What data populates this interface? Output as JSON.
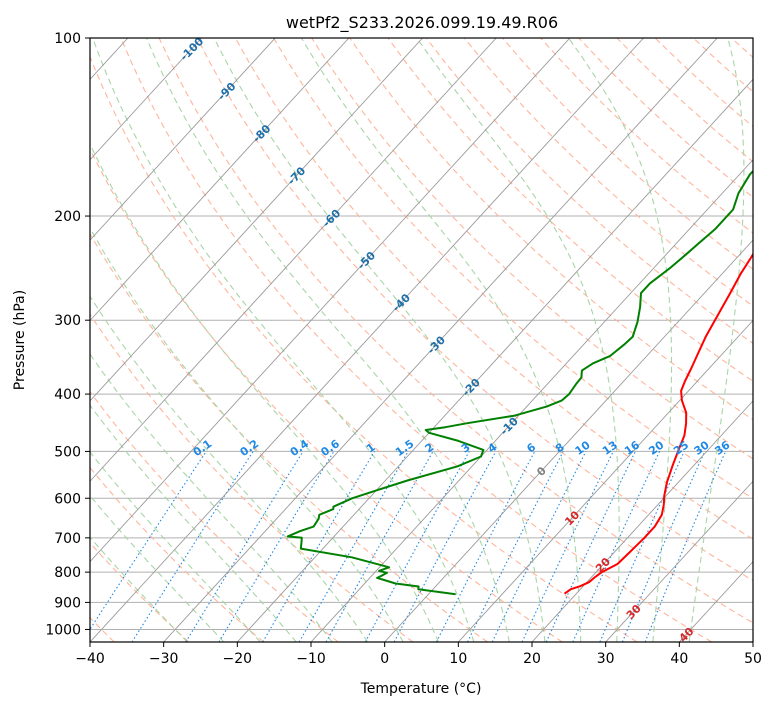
{
  "chart_data": {
    "type": "line",
    "title": "wetPf2_S233.2026.099.19.49.R06",
    "xlabel": "Temperature (°C)",
    "ylabel": "Pressure (hPa)",
    "xlim": [
      -40,
      50
    ],
    "ylim": [
      1050,
      100
    ],
    "x_ticks": [
      "−40",
      "−30",
      "−20",
      "−10",
      "0",
      "10",
      "20",
      "30",
      "40",
      "50"
    ],
    "x_tick_values": [
      -40,
      -30,
      -20,
      -10,
      0,
      10,
      20,
      30,
      40,
      50
    ],
    "y_ticks": [
      "100",
      "200",
      "300",
      "400",
      "500",
      "600",
      "700",
      "800",
      "900",
      "1000"
    ],
    "y_tick_values": [
      100,
      200,
      300,
      400,
      500,
      600,
      700,
      800,
      900,
      1000
    ],
    "colors": {
      "temperature": "#ff0000",
      "dewpoint": "#008000",
      "grid": "#b0b0b0",
      "isotherm": "#9a9a9a",
      "dry_adiabat": "#ffb59c",
      "moist_adiabat": "#a8d5a8",
      "mixing_ratio": "#1e88e5",
      "isotherm_label": "#1f6fa8",
      "dry_label": "#d62728",
      "zero_label": "#808080"
    },
    "series": [
      {
        "name": "Temperature",
        "points": [
          [
            18.4,
            870
          ],
          [
            18.7,
            855
          ],
          [
            19.6,
            845
          ],
          [
            20.3,
            832
          ],
          [
            20.5,
            815
          ],
          [
            20.8,
            800
          ],
          [
            21.9,
            775
          ],
          [
            22.1,
            740
          ],
          [
            22.3,
            700
          ],
          [
            22.3,
            670
          ],
          [
            21.8,
            640
          ],
          [
            20.8,
            615
          ],
          [
            19.8,
            595
          ],
          [
            18.5,
            565
          ],
          [
            17.2,
            530
          ],
          [
            16.0,
            497
          ],
          [
            15.0,
            470
          ],
          [
            13.7,
            448
          ],
          [
            12.4,
            430
          ],
          [
            10.3,
            410
          ],
          [
            9.0,
            395
          ],
          [
            8.3,
            380
          ],
          [
            7.5,
            360
          ],
          [
            6.8,
            345
          ],
          [
            5.6,
            320
          ],
          [
            4.6,
            295
          ],
          [
            3.5,
            270
          ],
          [
            2.5,
            250
          ],
          [
            1.9,
            235
          ],
          [
            0.9,
            215
          ],
          [
            -0.5,
            197
          ],
          [
            0.4,
            185
          ],
          [
            2.7,
            168
          ],
          [
            4.5,
            155
          ],
          [
            5.3,
            147
          ],
          [
            5.6,
            140
          ],
          [
            6.3,
            130
          ],
          [
            8.2,
            120
          ],
          [
            10.5,
            110
          ],
          [
            12.5,
            100
          ]
        ]
      },
      {
        "name": "Dewpoint",
        "points": [
          [
            3.7,
            872
          ],
          [
            -2.0,
            855
          ],
          [
            -2.3,
            846
          ],
          [
            -5.8,
            836
          ],
          [
            -9.0,
            818
          ],
          [
            -8.7,
            812
          ],
          [
            -8.3,
            802
          ],
          [
            -9.6,
            796
          ],
          [
            -8.7,
            785
          ],
          [
            -15.0,
            755
          ],
          [
            -23.0,
            730
          ],
          [
            -23.7,
            712
          ],
          [
            -24.2,
            700
          ],
          [
            -26.3,
            696
          ],
          [
            -25.3,
            682
          ],
          [
            -24.0,
            670
          ],
          [
            -24.3,
            650
          ],
          [
            -24.7,
            640
          ],
          [
            -23.5,
            626
          ],
          [
            -23.8,
            620
          ],
          [
            -22.3,
            600
          ],
          [
            -20.0,
            582
          ],
          [
            -17.0,
            560
          ],
          [
            -12.0,
            530
          ],
          [
            -10.0,
            510
          ],
          [
            -10.5,
            497
          ],
          [
            -15.0,
            480
          ],
          [
            -20.0,
            465
          ],
          [
            -20.8,
            460
          ],
          [
            -18.5,
            455
          ],
          [
            -16.0,
            448
          ],
          [
            -10.5,
            435
          ],
          [
            -7.3,
            420
          ],
          [
            -6.0,
            410
          ],
          [
            -5.8,
            400
          ],
          [
            -6.1,
            385
          ],
          [
            -6.2,
            375
          ],
          [
            -7.0,
            365
          ],
          [
            -6.4,
            355
          ],
          [
            -5.0,
            345
          ],
          [
            -4.5,
            330
          ],
          [
            -4.3,
            320
          ],
          [
            -5.5,
            302
          ],
          [
            -7.0,
            285
          ],
          [
            -8.6,
            270
          ],
          [
            -8.6,
            260
          ],
          [
            -7.8,
            245
          ],
          [
            -7.3,
            232
          ],
          [
            -7.0,
            223
          ],
          [
            -6.5,
            210
          ],
          [
            -6.5,
            195
          ],
          [
            -7.8,
            183
          ],
          [
            -8.6,
            170
          ],
          [
            -8.4,
            155
          ],
          [
            -6.8,
            140
          ],
          [
            -6.0,
            130
          ],
          [
            -5.8,
            120
          ],
          [
            -4.0,
            110
          ],
          [
            -1.8,
            100
          ]
        ]
      }
    ],
    "isotherm_labels": [
      "-100",
      "-90",
      "-80",
      "-70",
      "-60",
      "-50",
      "-40",
      "-30",
      "-20",
      "-10",
      "0",
      "10",
      "20",
      "30",
      "40"
    ],
    "mixing_ratio_labels": [
      "0.1",
      "0.2",
      "0.4",
      "0.6",
      "1",
      "1.5",
      "2",
      "3",
      "4",
      "6",
      "8",
      "10",
      "13",
      "16",
      "20",
      "25",
      "30",
      "36"
    ]
  }
}
